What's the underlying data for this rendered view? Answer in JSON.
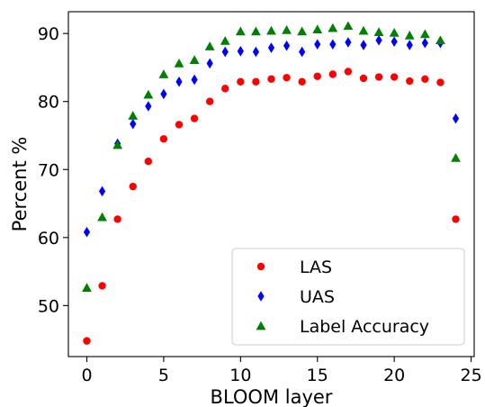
{
  "chart_data": {
    "type": "scatter",
    "title": "",
    "xlabel": "BLOOM layer",
    "ylabel": "Percent %",
    "xlim": [
      -1.2,
      25.2
    ],
    "ylim": [
      42.5,
      93.2
    ],
    "xticks": [
      0,
      5,
      10,
      15,
      20,
      25
    ],
    "yticks": [
      50,
      60,
      70,
      80,
      90
    ],
    "grid": false,
    "legend_position": "lower-right",
    "x": [
      0,
      1,
      2,
      3,
      4,
      5,
      6,
      7,
      8,
      9,
      10,
      11,
      12,
      13,
      14,
      15,
      16,
      17,
      18,
      19,
      20,
      21,
      22,
      23,
      24
    ],
    "series": [
      {
        "name": "LAS",
        "marker": "circle",
        "color": "#ff0000",
        "values": [
          44.8,
          52.9,
          62.7,
          67.5,
          71.2,
          74.5,
          76.6,
          77.5,
          80.0,
          81.9,
          82.9,
          82.9,
          83.3,
          83.5,
          82.9,
          83.7,
          84.0,
          84.4,
          83.4,
          83.6,
          83.6,
          83.0,
          83.3,
          82.8,
          62.7
        ]
      },
      {
        "name": "UAS",
        "marker": "diamond",
        "color": "#0000ff",
        "values": [
          60.8,
          66.8,
          73.8,
          76.7,
          79.3,
          81.1,
          82.9,
          83.2,
          85.6,
          87.3,
          87.4,
          87.3,
          87.9,
          88.2,
          87.3,
          88.4,
          88.4,
          88.7,
          88.3,
          89.0,
          88.8,
          88.3,
          88.6,
          88.6,
          77.5
        ]
      },
      {
        "name": "Label Accuracy",
        "marker": "triangle",
        "color": "#008000",
        "values": [
          52.6,
          63.0,
          73.6,
          77.9,
          81.0,
          84.0,
          85.6,
          86.1,
          88.1,
          88.9,
          90.3,
          90.3,
          90.4,
          90.5,
          90.3,
          90.6,
          90.8,
          91.1,
          90.4,
          90.2,
          90.1,
          89.7,
          89.9,
          89.0,
          71.7
        ]
      }
    ]
  }
}
